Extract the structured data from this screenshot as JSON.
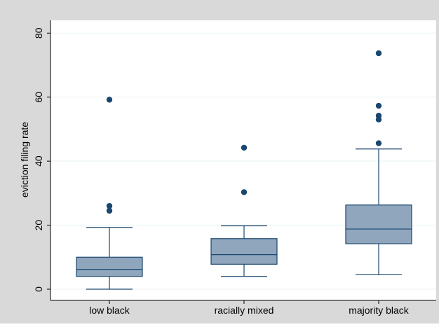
{
  "chart_data": {
    "type": "box",
    "ylabel": "eviction filing rate",
    "xlabel": "",
    "ylim": [
      -3.5,
      84
    ],
    "yticks": [
      0,
      20,
      40,
      60,
      80
    ],
    "grid": true,
    "legend": "none",
    "colors": {
      "outer_background": "#d9d9d9",
      "plot_background": "#ffffff",
      "gridline": "#eaf2f3",
      "box_fill": "#8fa6bd",
      "box_stroke": "#1a476f",
      "outlier": "#1a476f"
    },
    "categories": [
      "low black",
      "racially mixed",
      "majority black"
    ],
    "boxes": [
      {
        "category": "low black",
        "whisker_low": 0.0,
        "q1": 4.0,
        "median": 6.2,
        "q3": 10.0,
        "whisker_high": 19.3,
        "outliers": [
          24.5,
          26.0,
          59.2
        ]
      },
      {
        "category": "racially mixed",
        "whisker_low": 4.0,
        "q1": 7.8,
        "median": 10.8,
        "q3": 15.8,
        "whisker_high": 19.8,
        "outliers": [
          30.3,
          44.2
        ]
      },
      {
        "category": "majority black",
        "whisker_low": 4.5,
        "q1": 14.2,
        "median": 18.8,
        "q3": 26.3,
        "whisker_high": 43.8,
        "outliers": [
          45.6,
          53.0,
          54.2,
          57.3,
          73.7
        ]
      }
    ]
  }
}
